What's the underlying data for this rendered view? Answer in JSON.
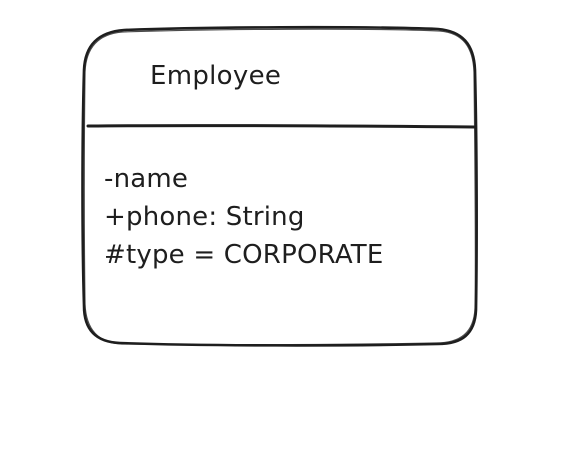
{
  "diagram": {
    "class_name": "Employee",
    "attributes": [
      "-name",
      "+phone: String",
      "#type = CORPORATE"
    ]
  },
  "colors": {
    "stroke": "#1e1e1e",
    "background": "#ffffff",
    "text": "#1e1e1e"
  }
}
